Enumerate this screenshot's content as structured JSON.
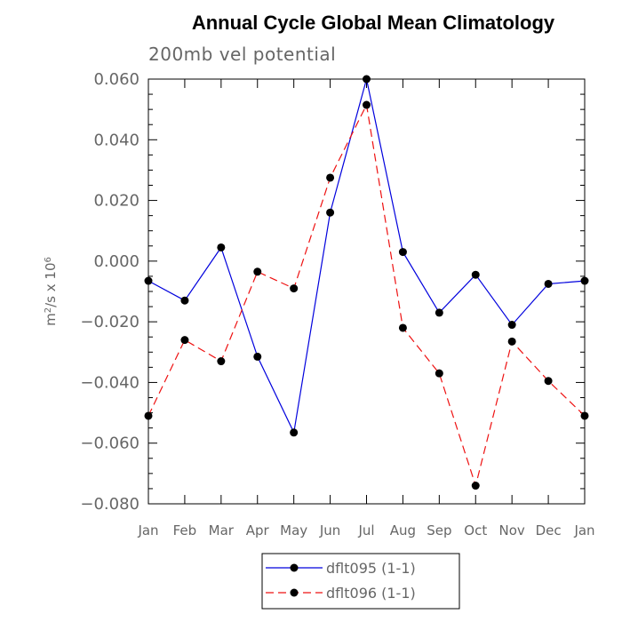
{
  "chart_data": {
    "type": "line",
    "title": "Annual Cycle Global Mean Climatology",
    "subtitle": "200mb vel potential",
    "ylabel_base": "m",
    "ylabel_sup1": "2",
    "ylabel_mid": "/s x 10",
    "ylabel_sup2": "6",
    "xlabel": "",
    "categories": [
      "Jan",
      "Feb",
      "Mar",
      "Apr",
      "May",
      "Jun",
      "Jul",
      "Aug",
      "Sep",
      "Oct",
      "Nov",
      "Dec",
      "Jan"
    ],
    "yticks": [
      "0.060",
      "0.040",
      "0.020",
      "0.000",
      "-0.020",
      "-0.040",
      "-0.060",
      "-0.080"
    ],
    "ylim": [
      -0.08,
      0.06
    ],
    "grid": false,
    "legend_position": "bottom-center",
    "series": [
      {
        "name": "dflt095 (1-1)",
        "color": "#0000dd",
        "dash": "solid",
        "marker": "filled-circle",
        "values": [
          -0.0065,
          -0.013,
          0.0045,
          -0.0315,
          -0.0565,
          0.016,
          0.06,
          0.003,
          -0.017,
          -0.0045,
          -0.021,
          -0.0075,
          -0.0065
        ]
      },
      {
        "name": "dflt096 (1-1)",
        "color": "#ee1111",
        "dash": "dashed",
        "marker": "filled-circle",
        "values": [
          -0.051,
          -0.026,
          -0.033,
          -0.0035,
          -0.009,
          0.0275,
          0.0515,
          -0.022,
          -0.037,
          -0.074,
          -0.0265,
          -0.0395,
          -0.051
        ]
      }
    ]
  }
}
